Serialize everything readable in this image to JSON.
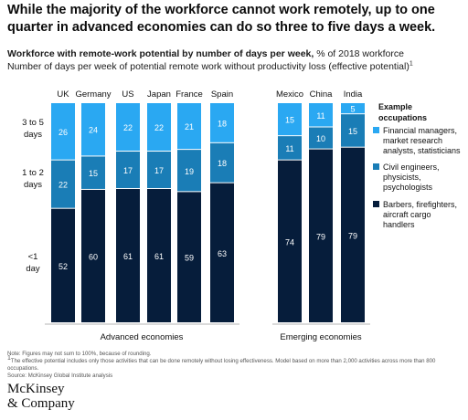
{
  "headline": "While the majority of the workforce cannot work remotely, up to one quarter in advanced economies can do so three to five days a week.",
  "subtitle": {
    "bold": "Workforce with remote-work potential by number of days per week,",
    "rest": " % of 2018 workforce",
    "line2": "Number of days per week of potential remote work without productivity loss (effective potential)",
    "line2_sup": "1"
  },
  "colors": {
    "days_3_5": "#2aa8f2",
    "days_1_2": "#1a7db6",
    "days_lt1": "#061d3b"
  },
  "chart_data": {
    "type": "bar",
    "stacked": true,
    "categories": [
      "UK",
      "Germany",
      "US",
      "Japan",
      "France",
      "Spain",
      "Mexico",
      "China",
      "India"
    ],
    "groups": [
      {
        "label": "Advanced economies",
        "categories": [
          "UK",
          "Germany",
          "US",
          "Japan",
          "France",
          "Spain"
        ]
      },
      {
        "label": "Emerging economies",
        "categories": [
          "Mexico",
          "China",
          "India"
        ]
      }
    ],
    "series": [
      {
        "name": "<1 day",
        "label_lines": [
          "<1",
          "day"
        ],
        "color": "#061d3b",
        "values": [
          52,
          60,
          61,
          61,
          59,
          63,
          74,
          79,
          79
        ]
      },
      {
        "name": "1 to 2 days",
        "label_lines": [
          "1 to 2",
          "days"
        ],
        "color": "#1a7db6",
        "values": [
          22,
          15,
          17,
          17,
          19,
          18,
          11,
          10,
          15
        ]
      },
      {
        "name": "3 to 5 days",
        "label_lines": [
          "3 to 5",
          "days"
        ],
        "color": "#2aa8f2",
        "values": [
          26,
          24,
          22,
          22,
          21,
          18,
          15,
          11,
          5
        ]
      }
    ],
    "legend": {
      "title_lines": [
        "Example",
        "occupations"
      ],
      "entries": [
        {
          "color": "#2aa8f2",
          "lines": [
            "Financial managers,",
            "market research",
            "analysts, statisticians"
          ]
        },
        {
          "color": "#1a7db6",
          "lines": [
            "Civil engineers,",
            "physicists,",
            "psychologists"
          ]
        },
        {
          "color": "#061d3b",
          "lines": [
            "Barbers, firefighters,",
            "aircraft cargo",
            "handlers"
          ]
        }
      ],
      "position": "right"
    }
  },
  "notes": {
    "line1": "Note: Figures may not sum to 100%, because of rounding.",
    "line2_sup": "1",
    "line2": "The effective potential includes only those activities that can be done remotely without losing effectiveness. Model based on more than 2,000 activities across more than 800 occupations.",
    "line3": "Source: McKinsey Global Institute analysis"
  },
  "brand": {
    "line1": "McKinsey",
    "line2": "& Company"
  }
}
